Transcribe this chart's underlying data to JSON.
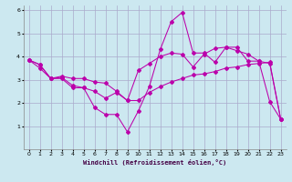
{
  "xlabel": "Windchill (Refroidissement éolien,°C)",
  "background_color": "#cce8f0",
  "grid_color": "#aaaacc",
  "line_color": "#bb00aa",
  "xlim": [
    -0.5,
    23.5
  ],
  "ylim": [
    0,
    6.2
  ],
  "xticks": [
    0,
    1,
    2,
    3,
    4,
    5,
    6,
    7,
    8,
    9,
    10,
    11,
    12,
    13,
    14,
    15,
    16,
    17,
    18,
    19,
    20,
    21,
    22,
    23
  ],
  "yticks": [
    1,
    2,
    3,
    4,
    5,
    6
  ],
  "line1_x": [
    0,
    1,
    2,
    3,
    4,
    5,
    6,
    7,
    8,
    9,
    10,
    11,
    12,
    13,
    14,
    15,
    16,
    17,
    18,
    19,
    20,
    21,
    22,
    23
  ],
  "line1_y": [
    3.85,
    3.65,
    3.05,
    3.05,
    2.65,
    2.65,
    1.8,
    1.5,
    1.5,
    0.75,
    1.65,
    2.7,
    4.3,
    5.5,
    5.9,
    4.15,
    4.15,
    3.75,
    4.4,
    4.4,
    3.8,
    3.8,
    2.05,
    1.3
  ],
  "line2_x": [
    0,
    1,
    2,
    3,
    4,
    5,
    6,
    7,
    8,
    9,
    10,
    11,
    12,
    13,
    14,
    15,
    16,
    17,
    18,
    19,
    20,
    21,
    22,
    23
  ],
  "line2_y": [
    3.85,
    3.5,
    3.05,
    3.15,
    3.05,
    3.05,
    2.9,
    2.85,
    2.5,
    2.1,
    2.1,
    2.45,
    2.7,
    2.9,
    3.05,
    3.2,
    3.25,
    3.35,
    3.5,
    3.55,
    3.65,
    3.7,
    3.75,
    1.3
  ],
  "line3_x": [
    0,
    1,
    2,
    3,
    4,
    5,
    6,
    7,
    8,
    9,
    10,
    11,
    12,
    13,
    14,
    15,
    16,
    17,
    18,
    19,
    20,
    21,
    22,
    23
  ],
  "line3_y": [
    3.85,
    3.65,
    3.05,
    3.1,
    2.75,
    2.65,
    2.5,
    2.2,
    2.45,
    2.1,
    3.4,
    3.7,
    4.0,
    4.15,
    4.1,
    3.55,
    4.1,
    4.35,
    4.4,
    4.25,
    4.1,
    3.8,
    3.7,
    1.3
  ]
}
